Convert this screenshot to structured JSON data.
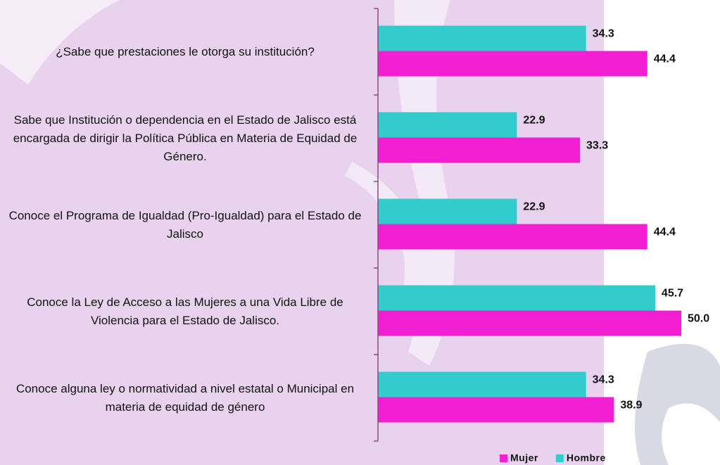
{
  "chart_data": {
    "type": "bar",
    "orientation": "horizontal",
    "categories": [
      "¿Sabe que prestaciones le otorga su institución?",
      "Sabe que Institución o dependencia en el Estado de Jalisco está encargada de dirigir la Política Pública en Materia de Equidad de Género.",
      "Conoce el Programa de Igualdad (Pro-Igualdad) para el Estado de Jalisco",
      "Conoce la Ley de Acceso a las Mujeres a una Vida Libre de Violencia para el Estado de Jalisco.",
      "Conoce alguna ley o normatividad a nivel estatal o Municipal en materia de equidad de género"
    ],
    "series": [
      {
        "name": "Mujer",
        "color": "#f21ed2",
        "values": [
          44.4,
          33.3,
          44.4,
          50,
          38.9
        ],
        "value_labels": [
          "44.4",
          "33.3",
          "44.4",
          "50.0",
          "38.9"
        ]
      },
      {
        "name": "Hombre",
        "color": "#33cccc",
        "values": [
          34.3,
          22.9,
          22.9,
          45.7,
          34.3
        ]
      }
    ],
    "xlim": [
      0,
      50
    ],
    "legend": "bottom-right"
  }
}
